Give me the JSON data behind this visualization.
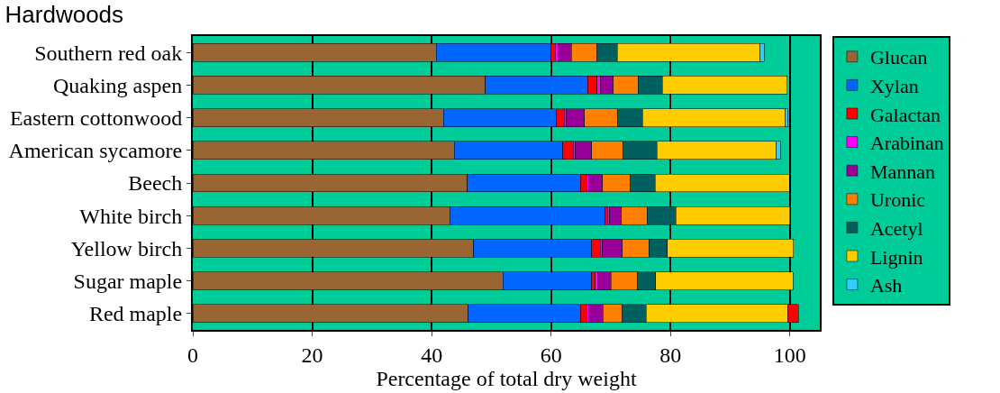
{
  "chart_data": {
    "type": "bar",
    "orientation": "horizontal",
    "stacked": true,
    "title": "Hardwoods",
    "xlabel": "Percentage of total dry weight",
    "categories": [
      "Southern red oak",
      "Quaking aspen",
      "Eastern cottonwood",
      "American sycamore",
      "Beech",
      "White birch",
      "Yellow birch",
      "Sugar maple",
      "Red maple"
    ],
    "series": [
      {
        "name": "Glucan",
        "color": "#996633",
        "values": [
          40.8,
          49.0,
          42.0,
          43.8,
          46.0,
          43.0,
          47.0,
          51.9,
          46.1
        ]
      },
      {
        "name": "Xylan",
        "color": "#0066ff",
        "values": [
          19.1,
          17.1,
          18.8,
          18.2,
          18.9,
          26.0,
          19.8,
          14.9,
          18.8
        ]
      },
      {
        "name": "Galactan",
        "color": "#ff0000",
        "values": [
          0.8,
          1.6,
          1.4,
          1.7,
          1.1,
          0.4,
          1.4,
          0.6,
          1.1
        ]
      },
      {
        "name": "Arabinan",
        "color": "#ff00ff",
        "values": [
          0.4,
          0.5,
          0.3,
          0.4,
          0.3,
          0.3,
          0.4,
          0.4,
          0.3
        ]
      },
      {
        "name": "Mannan",
        "color": "#990099",
        "values": [
          2.3,
          2.2,
          3.1,
          2.7,
          2.3,
          2.1,
          3.3,
          2.2,
          2.4
        ]
      },
      {
        "name": "Uronic",
        "color": "#ff8000",
        "values": [
          4.3,
          4.2,
          5.6,
          5.2,
          4.7,
          4.3,
          4.5,
          4.4,
          3.2
        ]
      },
      {
        "name": "Acetyl",
        "color": "#006060",
        "values": [
          3.4,
          4.0,
          4.1,
          5.7,
          4.1,
          4.8,
          3.1,
          3.1,
          4.0
        ]
      },
      {
        "name": "Lignin",
        "color": "#ffcc00",
        "values": [
          23.9,
          20.9,
          23.9,
          20.0,
          22.5,
          19.1,
          21.1,
          23.0,
          23.7
        ]
      },
      {
        "name": "Ash",
        "color": "#33ccff",
        "colors": [
          "#33ccff",
          "#33ccff",
          "#33ccff",
          "#33ccff",
          "#33ccff",
          "#33ccff",
          "#33ccff",
          "#33ccff",
          "#ff0000"
        ],
        "values": [
          0.7,
          null,
          0.5,
          0.7,
          null,
          null,
          null,
          null,
          1.8
        ]
      }
    ],
    "xlim": [
      0,
      105
    ],
    "xticks": [
      0,
      20,
      40,
      60,
      80,
      100
    ],
    "grid": "x",
    "legend": "right"
  }
}
